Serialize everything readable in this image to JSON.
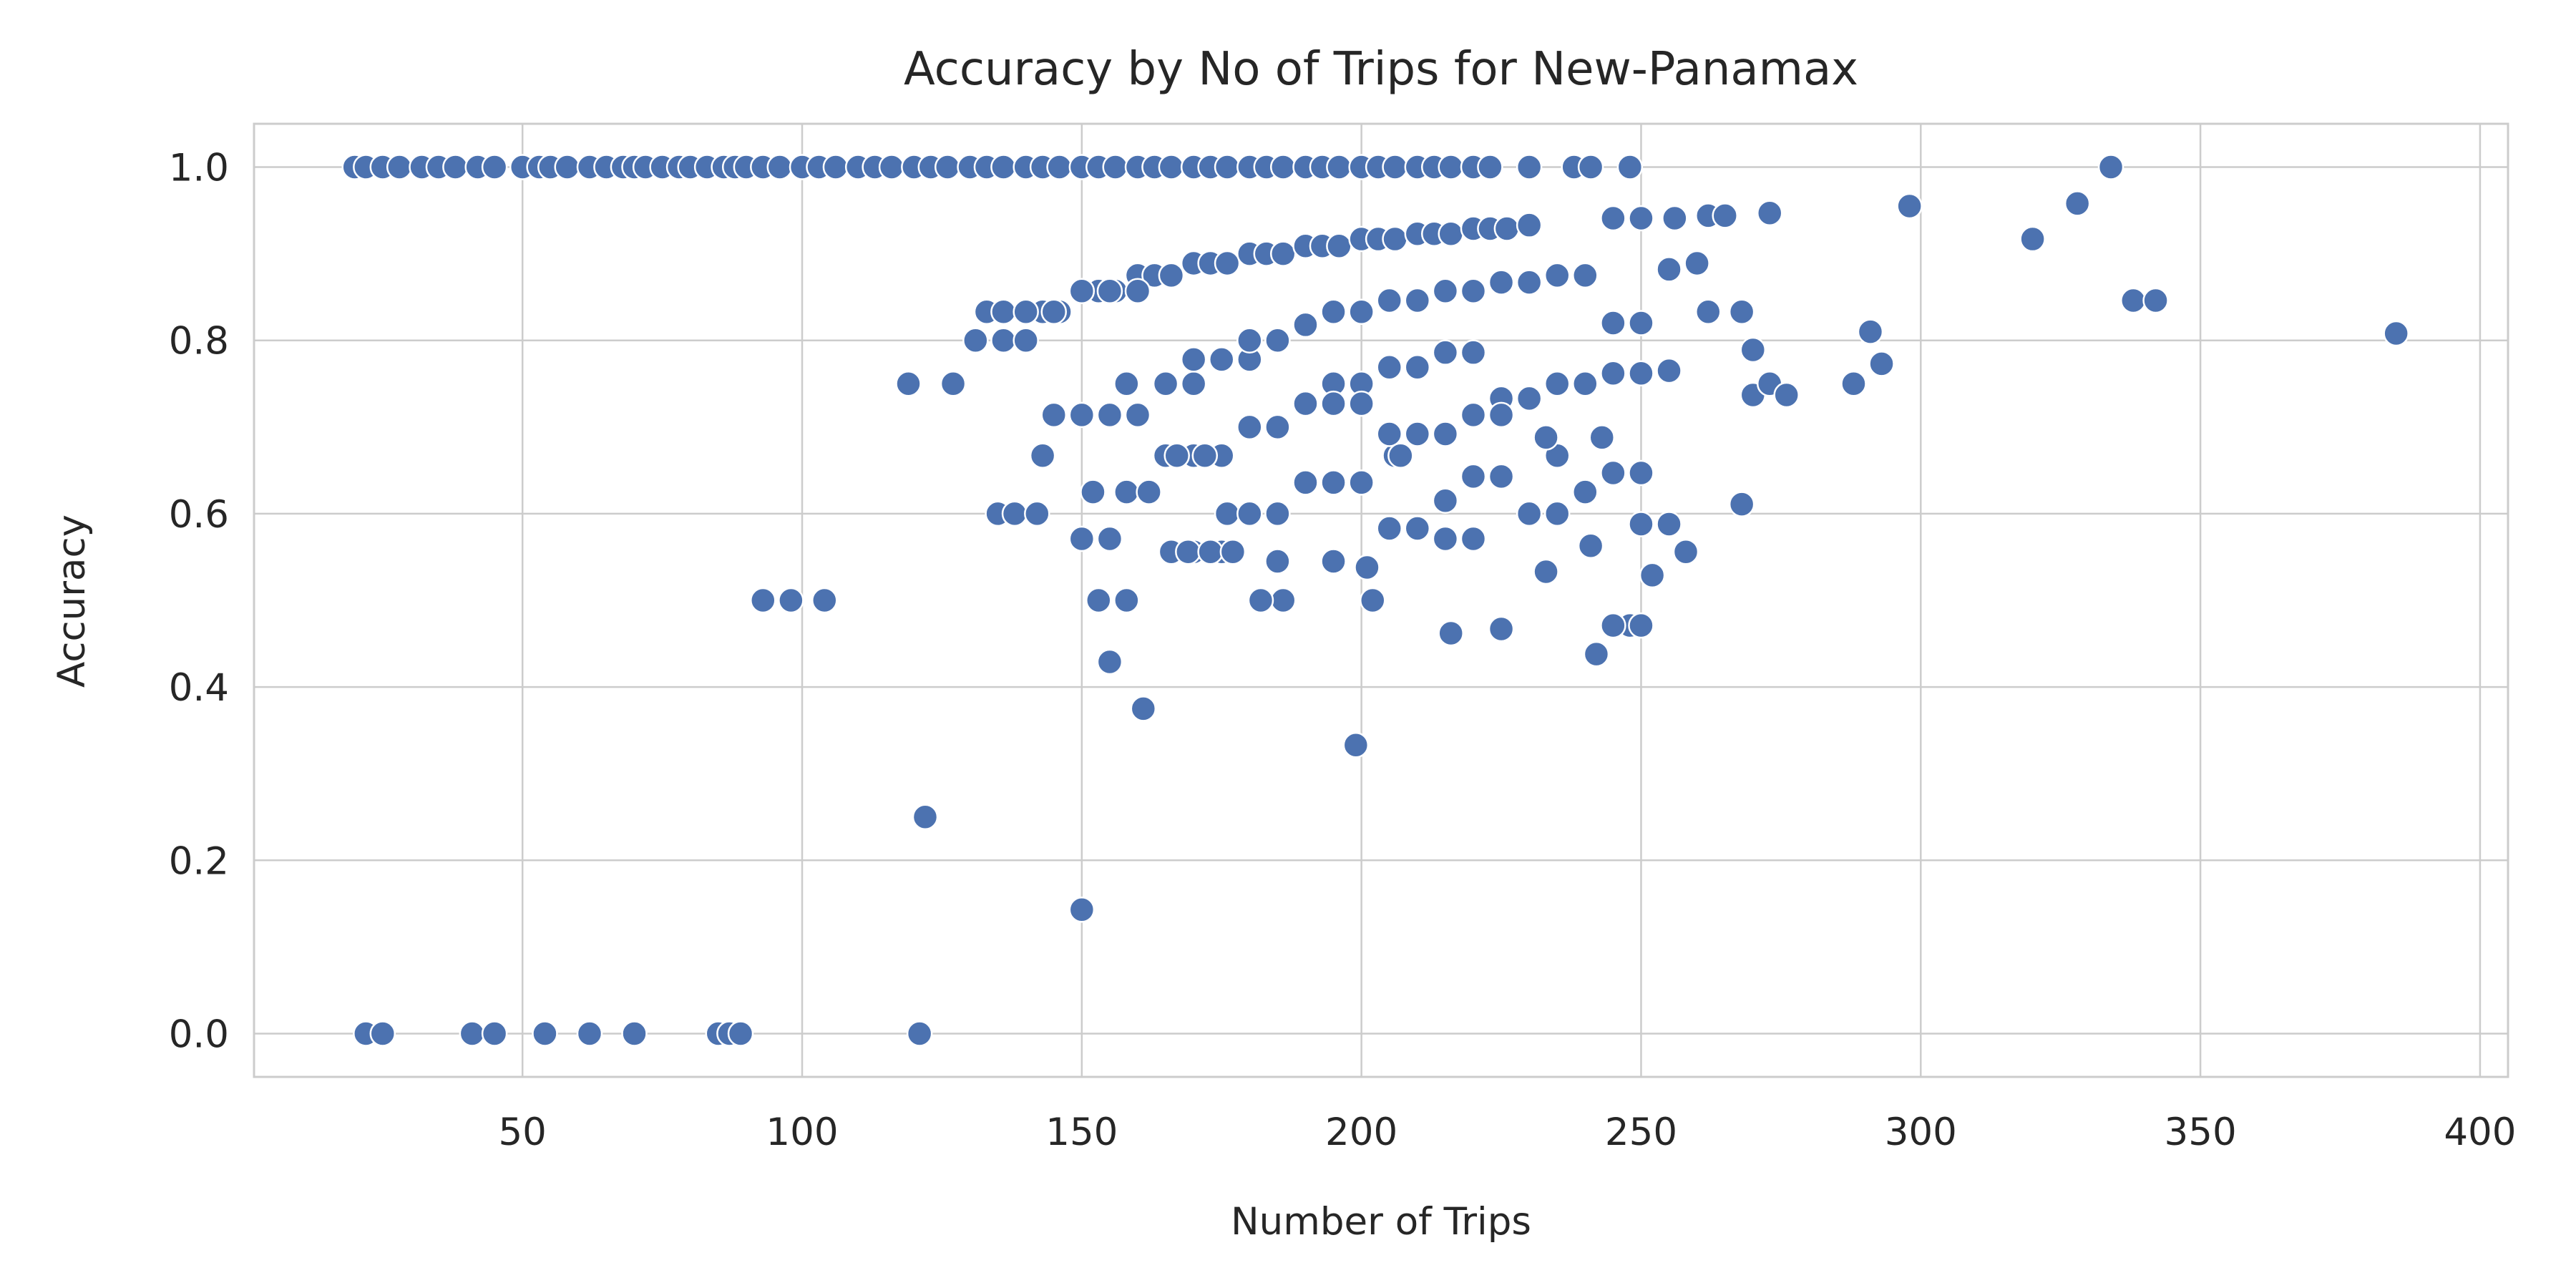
{
  "chart_data": {
    "type": "scatter",
    "title": "Accuracy by No of Trips for New-Panamax",
    "xlabel": "Number of Trips",
    "ylabel": "Accuracy",
    "xlim": [
      2,
      405
    ],
    "ylim": [
      -0.05,
      1.05
    ],
    "xticks": [
      50,
      100,
      150,
      200,
      250,
      300,
      350,
      400
    ],
    "yticks": [
      0.0,
      0.2,
      0.4,
      0.6,
      0.8,
      1.0
    ],
    "grid": true,
    "marker_color": "#4c72b0",
    "series": [
      {
        "name": "",
        "x": [
          20,
          22,
          25,
          28,
          32,
          35,
          38,
          42,
          45,
          50,
          53,
          55,
          58,
          62,
          65,
          68,
          70,
          72,
          75,
          78,
          80,
          83,
          86,
          88,
          90,
          93,
          96,
          100,
          103,
          106,
          110,
          113,
          116,
          120,
          123,
          126,
          130,
          133,
          136,
          140,
          143,
          146,
          150,
          153,
          156,
          160,
          163,
          166,
          170,
          173,
          176,
          180,
          183,
          186,
          190,
          193,
          196,
          200,
          203,
          206,
          210,
          213,
          216,
          220,
          223,
          230,
          238,
          241,
          248,
          22,
          25,
          41,
          45,
          54,
          62,
          70,
          85,
          87,
          89,
          121,
          93,
          98,
          104,
          122,
          150,
          119,
          127,
          131,
          133,
          136,
          140,
          143,
          146,
          150,
          153,
          156,
          160,
          163,
          166,
          170,
          173,
          176,
          180,
          183,
          186,
          190,
          193,
          196,
          200,
          203,
          206,
          210,
          213,
          216,
          220,
          223,
          226,
          230,
          136,
          140,
          145,
          150,
          155,
          160,
          165,
          170,
          175,
          180,
          185,
          190,
          195,
          200,
          205,
          210,
          215,
          220,
          225,
          230,
          235,
          240,
          245,
          250,
          255,
          260,
          245,
          250,
          256,
          262,
          265,
          273,
          298,
          320,
          328,
          334,
          338,
          342,
          385,
          158,
          165,
          170,
          175,
          180,
          185,
          190,
          195,
          200,
          205,
          210,
          215,
          220,
          225,
          230,
          235,
          240,
          245,
          250,
          255,
          262,
          268,
          270,
          288,
          291,
          145,
          150,
          155,
          160,
          165,
          170,
          175,
          180,
          185,
          190,
          195,
          200,
          205,
          210,
          215,
          220,
          225,
          230,
          235,
          240,
          245,
          250,
          270,
          273,
          276,
          293,
          143,
          152,
          158,
          162,
          166,
          170,
          175,
          180,
          185,
          190,
          195,
          200,
          205,
          210,
          215,
          220,
          225,
          230,
          235,
          240,
          245,
          250,
          255,
          135,
          138,
          142,
          150,
          155,
          160,
          167,
          172,
          176,
          180,
          185,
          195,
          201,
          206,
          215,
          220,
          230,
          233,
          241,
          248,
          252,
          258,
          268,
          166,
          169,
          173,
          177,
          182,
          186,
          195,
          205,
          233,
          243,
          252,
          153,
          158,
          182,
          202,
          207,
          216,
          225,
          242,
          245,
          250,
          155,
          161,
          199
        ],
        "y": [
          1,
          1,
          1,
          1,
          1,
          1,
          1,
          1,
          1,
          1,
          1,
          1,
          1,
          1,
          1,
          1,
          1,
          1,
          1,
          1,
          1,
          1,
          1,
          1,
          1,
          1,
          1,
          1,
          1,
          1,
          1,
          1,
          1,
          1,
          1,
          1,
          1,
          1,
          1,
          1,
          1,
          1,
          1,
          1,
          1,
          1,
          1,
          1,
          1,
          1,
          1,
          1,
          1,
          1,
          1,
          1,
          1,
          1,
          1,
          1,
          1,
          1,
          1,
          1,
          1,
          1,
          1,
          1,
          1,
          0,
          0,
          0,
          0,
          0,
          0,
          0,
          0,
          0,
          0,
          0,
          0.5,
          0.5,
          0.5,
          0.25,
          0.143,
          0.75,
          0.75,
          0.8,
          0.833,
          0.8,
          0.8,
          0.833,
          0.833,
          0.857,
          0.857,
          0.857,
          0.875,
          0.875,
          0.875,
          0.889,
          0.889,
          0.889,
          0.9,
          0.9,
          0.9,
          0.909,
          0.909,
          0.909,
          0.917,
          0.917,
          0.917,
          0.923,
          0.923,
          0.923,
          0.929,
          0.929,
          0.929,
          0.933,
          0.833,
          0.833,
          0.833,
          0.857,
          0.857,
          0.857,
          0.75,
          0.75,
          0.778,
          0.778,
          0.8,
          0.818,
          0.833,
          0.833,
          0.846,
          0.846,
          0.857,
          0.857,
          0.867,
          0.867,
          0.875,
          0.875,
          0.82,
          0.82,
          0.882,
          0.889,
          0.941,
          0.941,
          0.941,
          0.944,
          0.944,
          0.947,
          0.955,
          0.917,
          0.958,
          1,
          0.846,
          0.846,
          0.808,
          0.75,
          0.75,
          0.778,
          0.778,
          0.8,
          0.8,
          0.727,
          0.75,
          0.75,
          0.769,
          0.769,
          0.786,
          0.786,
          0.733,
          0.733,
          0.75,
          0.75,
          0.762,
          0.762,
          0.765,
          0.833,
          0.833,
          0.789,
          0.75,
          0.81,
          0.714,
          0.714,
          0.714,
          0.714,
          0.667,
          0.667,
          0.667,
          0.7,
          0.7,
          0.727,
          0.727,
          0.727,
          0.692,
          0.692,
          0.692,
          0.714,
          0.714,
          0.733,
          0.667,
          0.625,
          0.647,
          0.647,
          0.737,
          0.75,
          0.737,
          0.773,
          0.667,
          0.625,
          0.625,
          0.625,
          0.556,
          0.556,
          0.556,
          0.6,
          0.6,
          0.636,
          0.636,
          0.636,
          0.583,
          0.583,
          0.615,
          0.643,
          0.643,
          0.6,
          0.6,
          0.625,
          0.647,
          0.588,
          0.588,
          0.6,
          0.6,
          0.6,
          0.571,
          0.571,
          0.714,
          0.667,
          0.667,
          0.6,
          0.6,
          0.545,
          0.545,
          0.538,
          0.667,
          0.571,
          0.571,
          0.6,
          0.533,
          0.563,
          0.471,
          0.529,
          0.556,
          0.611,
          0.556,
          0.556,
          0.556,
          0.556,
          0.5,
          0.5,
          0.636,
          0.692,
          0.688,
          0.688,
          0.529,
          0.5,
          0.5,
          0.5,
          0.5,
          0.667,
          0.462,
          0.467,
          0.438,
          0.471,
          0.471,
          0.429,
          0.375,
          0.333
        ]
      }
    ]
  }
}
